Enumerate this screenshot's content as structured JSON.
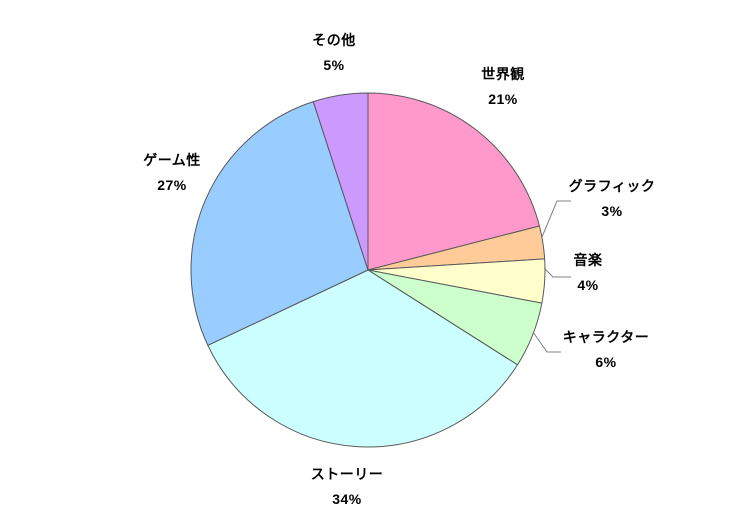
{
  "chart_data": {
    "type": "pie",
    "title": "",
    "legend_position": "none",
    "labels_outside": true,
    "start_angle_deg": 0,
    "direction": "clockwise",
    "categories": [
      "世界観",
      "グラフィック",
      "音楽",
      "キャラクター",
      "ストーリー",
      "ゲーム性",
      "その他"
    ],
    "values": [
      21,
      3,
      4,
      6,
      34,
      27,
      5
    ],
    "slices": [
      {
        "label": "世界観",
        "value": 21,
        "pct_label": "21%",
        "color": "#FF99CC"
      },
      {
        "label": "グラフィック",
        "value": 3,
        "pct_label": "3%",
        "color": "#FFCC99"
      },
      {
        "label": "音楽",
        "value": 4,
        "pct_label": "4%",
        "color": "#FFFFCC"
      },
      {
        "label": "キャラクター",
        "value": 6,
        "pct_label": "6%",
        "color": "#CCFFCC"
      },
      {
        "label": "ストーリー",
        "value": 34,
        "pct_label": "34%",
        "color": "#CCFFFF"
      },
      {
        "label": "ゲーム性",
        "value": 27,
        "pct_label": "27%",
        "color": "#99CCFF"
      },
      {
        "label": "その他",
        "value": 5,
        "pct_label": "5%",
        "color": "#CC99FF"
      }
    ],
    "outline_color": "#595959",
    "leader_line_color": "#808080"
  }
}
